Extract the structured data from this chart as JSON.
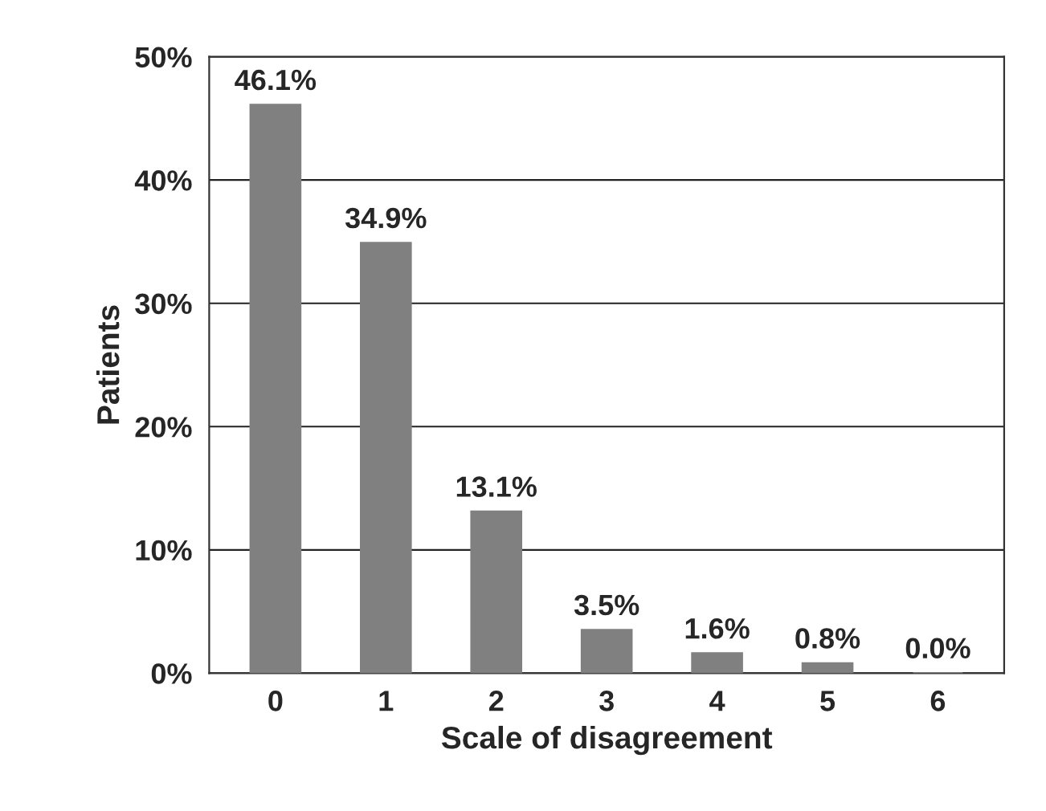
{
  "chart_data": {
    "type": "bar",
    "xlabel": "Scale of disagreement",
    "ylabel": "Patients",
    "categories": [
      "0",
      "1",
      "2",
      "3",
      "4",
      "5",
      "6"
    ],
    "values": [
      46.1,
      34.9,
      13.1,
      3.5,
      1.6,
      0.8,
      0.0
    ],
    "value_labels": [
      "46.1%",
      "34.9%",
      "13.1%",
      "3.5%",
      "1.6%",
      "0.8%",
      "0.0%"
    ],
    "color": "#808080",
    "ylim": [
      0,
      50
    ],
    "yticks": [
      {
        "value": 0,
        "label": "0%"
      },
      {
        "value": 10,
        "label": "10%"
      },
      {
        "value": 20,
        "label": "20%"
      },
      {
        "value": 30,
        "label": "30%"
      },
      {
        "value": 40,
        "label": "40%"
      },
      {
        "value": 50,
        "label": "50%"
      }
    ],
    "grid": "y"
  }
}
